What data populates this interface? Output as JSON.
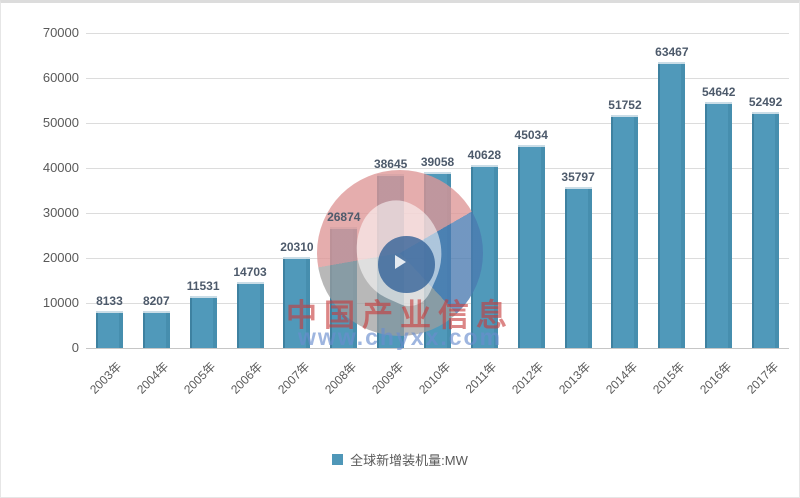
{
  "chart_data": {
    "type": "bar",
    "title": "",
    "xlabel": "",
    "ylabel": "",
    "categories": [
      "2003年",
      "2004年",
      "2005年",
      "2006年",
      "2007年",
      "2008年",
      "2009年",
      "2010年",
      "2011年",
      "2012年",
      "2013年",
      "2014年",
      "2015年",
      "2016年",
      "2017年"
    ],
    "values": [
      8133,
      8207,
      11531,
      14703,
      20310,
      26874,
      38645,
      39058,
      40628,
      45034,
      35797,
      51752,
      63467,
      54642,
      52492
    ],
    "series_name": "全球新增装机量:MW",
    "ylim": [
      0,
      70000
    ],
    "yticks": [
      0,
      10000,
      20000,
      30000,
      40000,
      50000,
      60000,
      70000
    ],
    "grid": true,
    "legend_position": "bottom",
    "data_labels": true
  },
  "style": {
    "bar_color": "#5099ba",
    "bar_edge_color": "#3e81a0",
    "gridline_color": "#dcdcdc",
    "axis_text_color": "#595959",
    "value_label_color": "#4d5a6b",
    "legend_swatch_color": "#4f97b8"
  },
  "watermark": {
    "brand_text": "中国产业信息",
    "url_text": "www.chyxx.com",
    "brand_color": "rgba(198,60,60,0.62)",
    "url_color": "rgba(106,141,206,0.65)",
    "logo_colors": {
      "pink": "#de9696",
      "blue": "#4a7ab0",
      "gray": "#9d9d9d"
    }
  }
}
